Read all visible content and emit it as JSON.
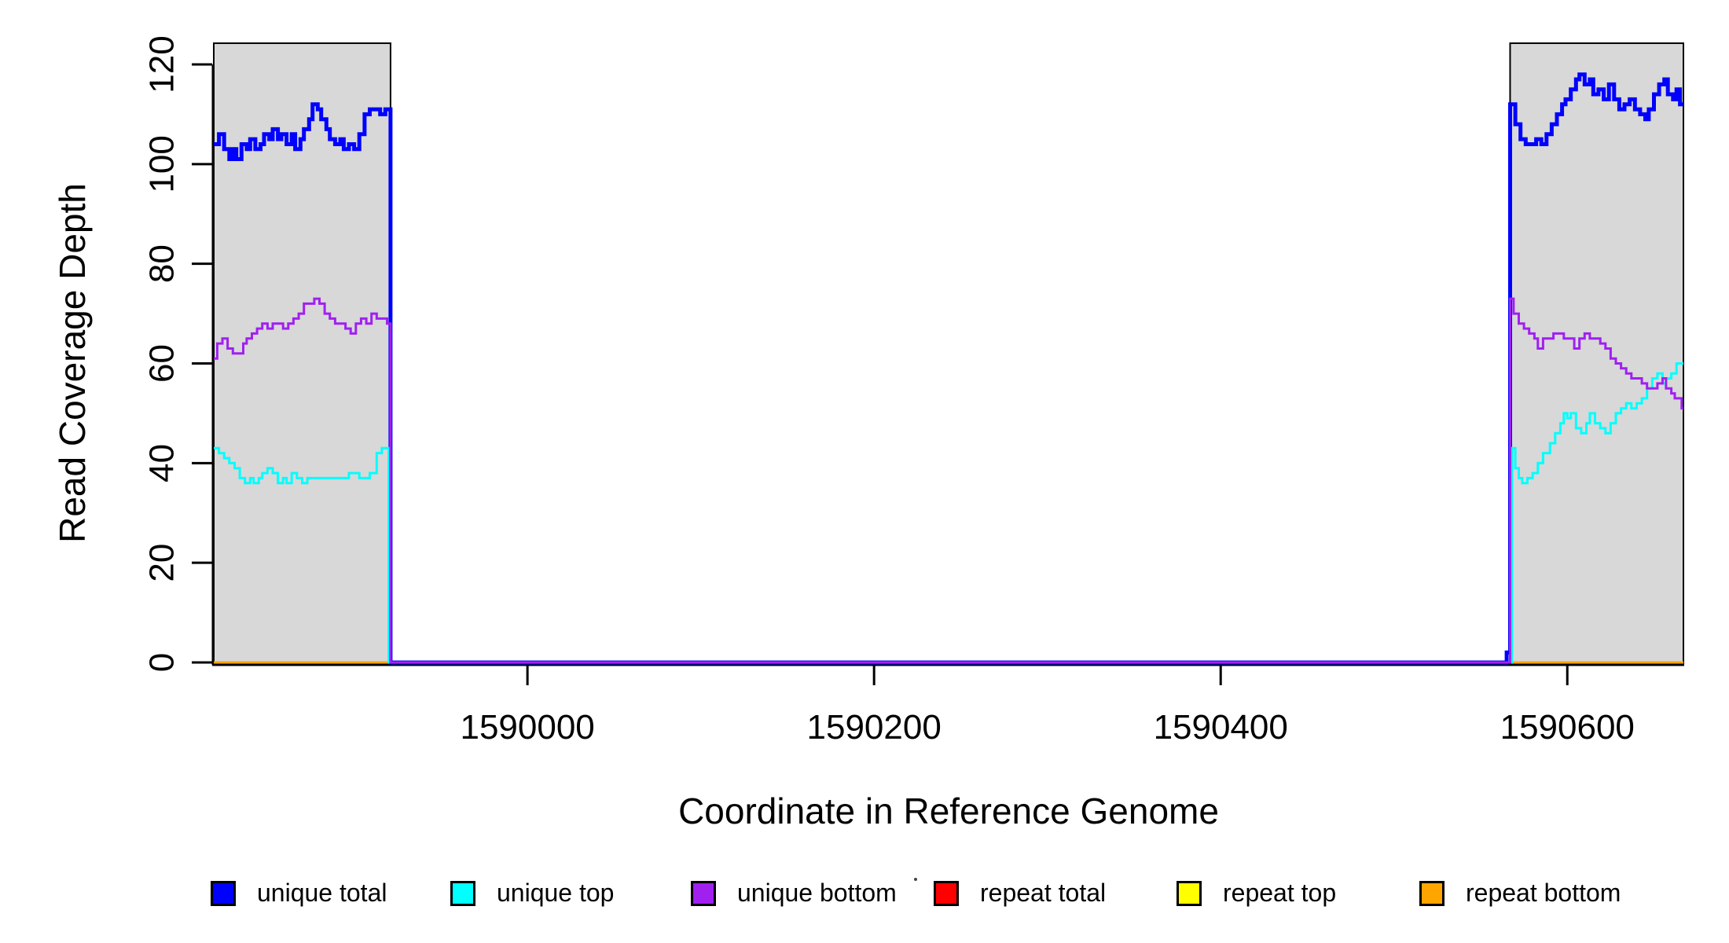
{
  "figure_title": "",
  "axes": {
    "xlabel": "Coordinate in Reference Genome",
    "ylabel": "Read Coverage Depth"
  },
  "legend": {
    "items": [
      {
        "label": "unique total",
        "color": "#0000FF"
      },
      {
        "label": "unique top",
        "color": "#00FFFF"
      },
      {
        "label": "unique bottom",
        "color": "#A020F0"
      },
      {
        "label": "repeat total",
        "color": "#FF0000"
      },
      {
        "label": "repeat top",
        "color": "#FFFF00"
      },
      {
        "label": "repeat bottom",
        "color": "#FFA500"
      }
    ]
  },
  "chart_data": {
    "type": "line",
    "title": "",
    "xlabel": "Coordinate in Reference Genome",
    "ylabel": "Read Coverage Depth",
    "xlim": [
      1589819,
      1590667
    ],
    "ylim": [
      0,
      120
    ],
    "x_ticks": [
      1590000,
      1590200,
      1590400,
      1590600
    ],
    "y_ticks": [
      0,
      20,
      40,
      60,
      80,
      100,
      120
    ],
    "grid": false,
    "legend_position": "bottom",
    "step": true,
    "shaded_regions": [
      {
        "x0": 1589819,
        "x1": 1589921,
        "fill": "#D8D8D8",
        "border": "#000000"
      },
      {
        "x0": 1590567,
        "x1": 1590667,
        "fill": "#D8D8D8",
        "border": "#000000"
      }
    ],
    "series": [
      {
        "name": "unique total",
        "color": "#0000FF",
        "linewidth": 5,
        "segments": [
          [
            [
              1589819,
              104
            ],
            [
              1589822,
              106
            ],
            [
              1589825,
              103
            ],
            [
              1589828,
              101
            ],
            [
              1589830,
              103
            ],
            [
              1589832,
              101
            ],
            [
              1589835,
              104
            ],
            [
              1589838,
              103
            ],
            [
              1589840,
              105
            ],
            [
              1589843,
              103
            ],
            [
              1589846,
              104
            ],
            [
              1589848,
              106
            ],
            [
              1589851,
              105
            ],
            [
              1589853,
              107
            ],
            [
              1589856,
              105
            ],
            [
              1589858,
              106
            ],
            [
              1589861,
              104
            ],
            [
              1589864,
              106
            ],
            [
              1589866,
              103
            ],
            [
              1589869,
              105
            ],
            [
              1589871,
              107
            ],
            [
              1589874,
              109
            ],
            [
              1589876,
              112
            ],
            [
              1589879,
              111
            ],
            [
              1589881,
              109
            ],
            [
              1589884,
              107
            ],
            [
              1589886,
              105
            ],
            [
              1589889,
              104
            ],
            [
              1589892,
              105
            ],
            [
              1589894,
              103
            ],
            [
              1589897,
              104
            ],
            [
              1589900,
              103
            ],
            [
              1589903,
              106
            ],
            [
              1589906,
              110
            ],
            [
              1589909,
              111
            ],
            [
              1589915,
              110
            ],
            [
              1589918,
              111
            ],
            [
              1589921,
              0
            ],
            [
              1590565,
              2
            ],
            [
              1590567,
              112
            ],
            [
              1590570,
              108
            ],
            [
              1590573,
              105
            ],
            [
              1590576,
              104
            ],
            [
              1590579,
              104
            ],
            [
              1590582,
              105
            ],
            [
              1590585,
              104
            ],
            [
              1590588,
              106
            ],
            [
              1590591,
              108
            ],
            [
              1590594,
              110
            ],
            [
              1590597,
              112
            ],
            [
              1590599,
              113
            ],
            [
              1590602,
              115
            ],
            [
              1590605,
              117
            ],
            [
              1590607,
              118
            ],
            [
              1590610,
              116
            ],
            [
              1590613,
              117
            ],
            [
              1590615,
              114
            ],
            [
              1590618,
              115
            ],
            [
              1590621,
              113
            ],
            [
              1590624,
              116
            ],
            [
              1590627,
              113
            ],
            [
              1590630,
              111
            ],
            [
              1590633,
              112
            ],
            [
              1590636,
              113
            ],
            [
              1590639,
              111
            ],
            [
              1590642,
              110
            ],
            [
              1590645,
              109
            ],
            [
              1590647,
              111
            ],
            [
              1590650,
              114
            ],
            [
              1590653,
              116
            ],
            [
              1590656,
              117
            ],
            [
              1590658,
              114
            ],
            [
              1590661,
              113
            ],
            [
              1590663,
              115
            ],
            [
              1590665,
              112
            ],
            [
              1590667,
              112
            ]
          ]
        ]
      },
      {
        "name": "unique top",
        "color": "#00FFFF",
        "linewidth": 3,
        "segments": [
          [
            [
              1589819,
              43
            ],
            [
              1589822,
              42
            ],
            [
              1589825,
              41
            ],
            [
              1589828,
              40
            ],
            [
              1589831,
              39
            ],
            [
              1589834,
              37
            ],
            [
              1589837,
              36
            ],
            [
              1589840,
              37
            ],
            [
              1589842,
              36
            ],
            [
              1589845,
              37
            ],
            [
              1589847,
              38
            ],
            [
              1589850,
              39
            ],
            [
              1589853,
              38
            ],
            [
              1589856,
              36
            ],
            [
              1589859,
              37
            ],
            [
              1589861,
              36
            ],
            [
              1589864,
              38
            ],
            [
              1589867,
              37
            ],
            [
              1589870,
              36
            ],
            [
              1589873,
              37
            ],
            [
              1589879,
              37
            ],
            [
              1589885,
              37
            ],
            [
              1589891,
              37
            ],
            [
              1589897,
              38
            ],
            [
              1589903,
              37
            ],
            [
              1589909,
              38
            ],
            [
              1589913,
              42
            ],
            [
              1589916,
              43
            ],
            [
              1589920,
              0
            ],
            [
              1590568,
              43
            ],
            [
              1590570,
              39
            ],
            [
              1590572,
              37
            ],
            [
              1590574,
              36
            ],
            [
              1590577,
              37
            ],
            [
              1590580,
              38
            ],
            [
              1590583,
              40
            ],
            [
              1590586,
              42
            ],
            [
              1590590,
              44
            ],
            [
              1590593,
              46
            ],
            [
              1590596,
              48
            ],
            [
              1590598,
              50
            ],
            [
              1590600,
              49
            ],
            [
              1590602,
              50
            ],
            [
              1590605,
              47
            ],
            [
              1590608,
              46
            ],
            [
              1590611,
              48
            ],
            [
              1590613,
              50
            ],
            [
              1590616,
              48
            ],
            [
              1590619,
              47
            ],
            [
              1590622,
              46
            ],
            [
              1590625,
              48
            ],
            [
              1590628,
              50
            ],
            [
              1590631,
              51
            ],
            [
              1590634,
              52
            ],
            [
              1590637,
              51
            ],
            [
              1590640,
              52
            ],
            [
              1590643,
              53
            ],
            [
              1590646,
              55
            ],
            [
              1590649,
              57
            ],
            [
              1590652,
              58
            ],
            [
              1590655,
              56
            ],
            [
              1590657,
              57
            ],
            [
              1590660,
              58
            ],
            [
              1590663,
              60
            ],
            [
              1590667,
              60
            ]
          ]
        ]
      },
      {
        "name": "unique bottom",
        "color": "#A020F0",
        "linewidth": 3,
        "segments": [
          [
            [
              1589819,
              61
            ],
            [
              1589821,
              64
            ],
            [
              1589824,
              65
            ],
            [
              1589827,
              63
            ],
            [
              1589830,
              62
            ],
            [
              1589833,
              62
            ],
            [
              1589836,
              64
            ],
            [
              1589838,
              65
            ],
            [
              1589841,
              66
            ],
            [
              1589844,
              67
            ],
            [
              1589847,
              68
            ],
            [
              1589850,
              67
            ],
            [
              1589853,
              68
            ],
            [
              1589856,
              68
            ],
            [
              1589859,
              67
            ],
            [
              1589862,
              68
            ],
            [
              1589865,
              69
            ],
            [
              1589868,
              70
            ],
            [
              1589871,
              72
            ],
            [
              1589874,
              72
            ],
            [
              1589877,
              73
            ],
            [
              1589880,
              72
            ],
            [
              1589883,
              70
            ],
            [
              1589886,
              69
            ],
            [
              1589889,
              68
            ],
            [
              1589892,
              68
            ],
            [
              1589895,
              67
            ],
            [
              1589898,
              66
            ],
            [
              1589901,
              68
            ],
            [
              1589904,
              69
            ],
            [
              1589907,
              68
            ],
            [
              1589910,
              70
            ],
            [
              1589913,
              69
            ],
            [
              1589916,
              69
            ],
            [
              1589919,
              68
            ],
            [
              1589921,
              0
            ],
            [
              1590567,
              73
            ],
            [
              1590569,
              70
            ],
            [
              1590572,
              68
            ],
            [
              1590575,
              67
            ],
            [
              1590578,
              66
            ],
            [
              1590581,
              65
            ],
            [
              1590583,
              63
            ],
            [
              1590586,
              65
            ],
            [
              1590589,
              65
            ],
            [
              1590592,
              66
            ],
            [
              1590595,
              66
            ],
            [
              1590598,
              65
            ],
            [
              1590601,
              65
            ],
            [
              1590604,
              63
            ],
            [
              1590607,
              65
            ],
            [
              1590610,
              66
            ],
            [
              1590613,
              65
            ],
            [
              1590616,
              65
            ],
            [
              1590619,
              64
            ],
            [
              1590622,
              63
            ],
            [
              1590625,
              61
            ],
            [
              1590628,
              60
            ],
            [
              1590631,
              59
            ],
            [
              1590634,
              58
            ],
            [
              1590637,
              57
            ],
            [
              1590640,
              57
            ],
            [
              1590643,
              56
            ],
            [
              1590646,
              55
            ],
            [
              1590649,
              55
            ],
            [
              1590652,
              56
            ],
            [
              1590655,
              57
            ],
            [
              1590657,
              55
            ],
            [
              1590660,
              54
            ],
            [
              1590662,
              53
            ],
            [
              1590665,
              53
            ],
            [
              1590666,
              51
            ],
            [
              1590667,
              51
            ]
          ]
        ]
      },
      {
        "name": "repeat total",
        "color": "#FF0000",
        "linewidth": 3,
        "segments": [
          [
            [
              1589819,
              0
            ],
            [
              1589921,
              0
            ]
          ],
          [
            [
              1590567,
              0
            ],
            [
              1590667,
              0
            ]
          ]
        ]
      },
      {
        "name": "repeat top",
        "color": "#FFFF00",
        "linewidth": 3,
        "segments": [
          [
            [
              1589819,
              0
            ],
            [
              1589921,
              0
            ]
          ],
          [
            [
              1590567,
              0
            ],
            [
              1590667,
              0
            ]
          ]
        ]
      },
      {
        "name": "repeat bottom",
        "color": "#FFA500",
        "linewidth": 3,
        "segments": [
          [
            [
              1589819,
              0
            ],
            [
              1589921,
              0
            ]
          ],
          [
            [
              1590567,
              0
            ],
            [
              1590667,
              0
            ]
          ]
        ]
      }
    ]
  }
}
